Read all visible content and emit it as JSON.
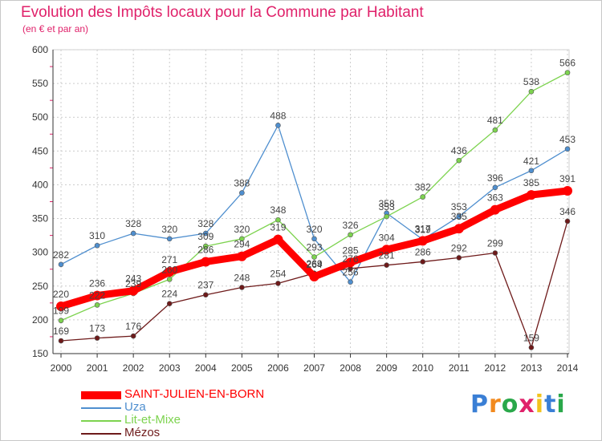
{
  "header": {
    "title": "Evolution des Impôts locaux pour la Commune par Habitant",
    "subtitle": "(en € et par an)"
  },
  "logo": {
    "text": "Proxiti",
    "colors": [
      "#3a7fd5",
      "#f28a1e",
      "#2aa84a",
      "#e0216a",
      "#f2c31e",
      "#3a7fd5",
      "#2aa84a"
    ]
  },
  "chart_data": {
    "type": "line",
    "title": "Evolution des Impôts locaux pour la Commune par Habitant",
    "subtitle": "(en € et par an)",
    "xlabel": "",
    "ylabel": "",
    "x": [
      "2000",
      "2001",
      "2002",
      "2003",
      "2004",
      "2005",
      "2006",
      "2007",
      "2008",
      "2009",
      "2010",
      "2011",
      "2012",
      "2013",
      "2014"
    ],
    "ylim": [
      150,
      600
    ],
    "yticks": [
      150,
      200,
      250,
      300,
      350,
      400,
      450,
      500,
      550,
      600
    ],
    "grid": true,
    "legend": "bottom-left",
    "series": [
      {
        "name": "SAINT-JULIEN-EN-BORN",
        "color": "#ff0000",
        "values": [
          220,
          236,
          243,
          271,
          286,
          294,
          319,
          264,
          285,
          304,
          317,
          335,
          363,
          385,
          391
        ],
        "labels": [
          "220",
          "236",
          "243",
          "271",
          "286",
          "294",
          "319",
          "264",
          "285",
          "304",
          "317",
          "335",
          "363",
          "385",
          "391"
        ]
      },
      {
        "name": "Uza",
        "color": "#4f8fcf",
        "values": [
          282,
          310,
          328,
          320,
          328,
          388,
          488,
          320,
          256,
          358,
          319,
          353,
          396,
          421,
          453
        ],
        "labels": [
          "282",
          "310",
          "328",
          "320",
          "328",
          "388",
          "488",
          "320",
          "256",
          "358",
          "319",
          "353",
          "396",
          "421",
          "453"
        ]
      },
      {
        "name": "Lit-et-Mixe",
        "color": "#7dd34f",
        "values": [
          199,
          222,
          239,
          260,
          309,
          320,
          348,
          293,
          326,
          353,
          382,
          436,
          481,
          538,
          566
        ],
        "labels": [
          "199",
          "222",
          "239",
          "260",
          "309",
          "320",
          "348",
          "293",
          "326",
          "353",
          "382",
          "436",
          "481",
          "538",
          "566"
        ]
      },
      {
        "name": "Mézos",
        "color": "#6e1a1a",
        "values": [
          169,
          173,
          176,
          224,
          237,
          248,
          254,
          269,
          276,
          281,
          286,
          292,
          299,
          159,
          346
        ],
        "labels": [
          "169",
          "173",
          "176",
          "224",
          "237",
          "248",
          "254",
          "269",
          "276",
          "281",
          "286",
          "292",
          "299",
          "159",
          "346"
        ]
      }
    ]
  }
}
